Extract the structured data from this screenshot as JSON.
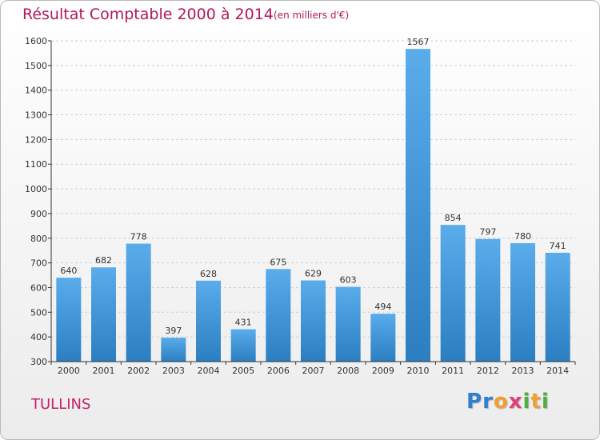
{
  "title": "Résultat Comptable 2000 à 2014",
  "subtitle": "(en milliers d'€)",
  "commune": "TULLINS",
  "logo": {
    "letters": [
      {
        "ch": "P",
        "color": "#2f7fd0"
      },
      {
        "ch": "r",
        "color": "#2f7fd0"
      },
      {
        "ch": "o",
        "color": "#f0a030"
      },
      {
        "ch": "x",
        "color": "#e0407a"
      },
      {
        "ch": "i",
        "color": "#4fae3f"
      },
      {
        "ch": "t",
        "color": "#f0a030"
      },
      {
        "ch": "i",
        "color": "#4fae3f"
      }
    ]
  },
  "colors": {
    "title": "#b0185a",
    "bar_top": "#5aaceb",
    "bar_bottom": "#2b7ec0",
    "axis": "#333333"
  },
  "chart_data": {
    "type": "bar",
    "categories": [
      "2000",
      "2001",
      "2002",
      "2003",
      "2004",
      "2005",
      "2006",
      "2007",
      "2008",
      "2009",
      "2010",
      "2011",
      "2012",
      "2013",
      "2014"
    ],
    "values": [
      640,
      682,
      778,
      397,
      628,
      431,
      675,
      629,
      603,
      494,
      1567,
      854,
      797,
      780,
      741
    ],
    "ylim": [
      300,
      1600
    ],
    "yticks": [
      300,
      400,
      500,
      600,
      700,
      800,
      900,
      1000,
      1100,
      1200,
      1300,
      1400,
      1500,
      1600
    ],
    "grid": true,
    "data_labels": true
  }
}
